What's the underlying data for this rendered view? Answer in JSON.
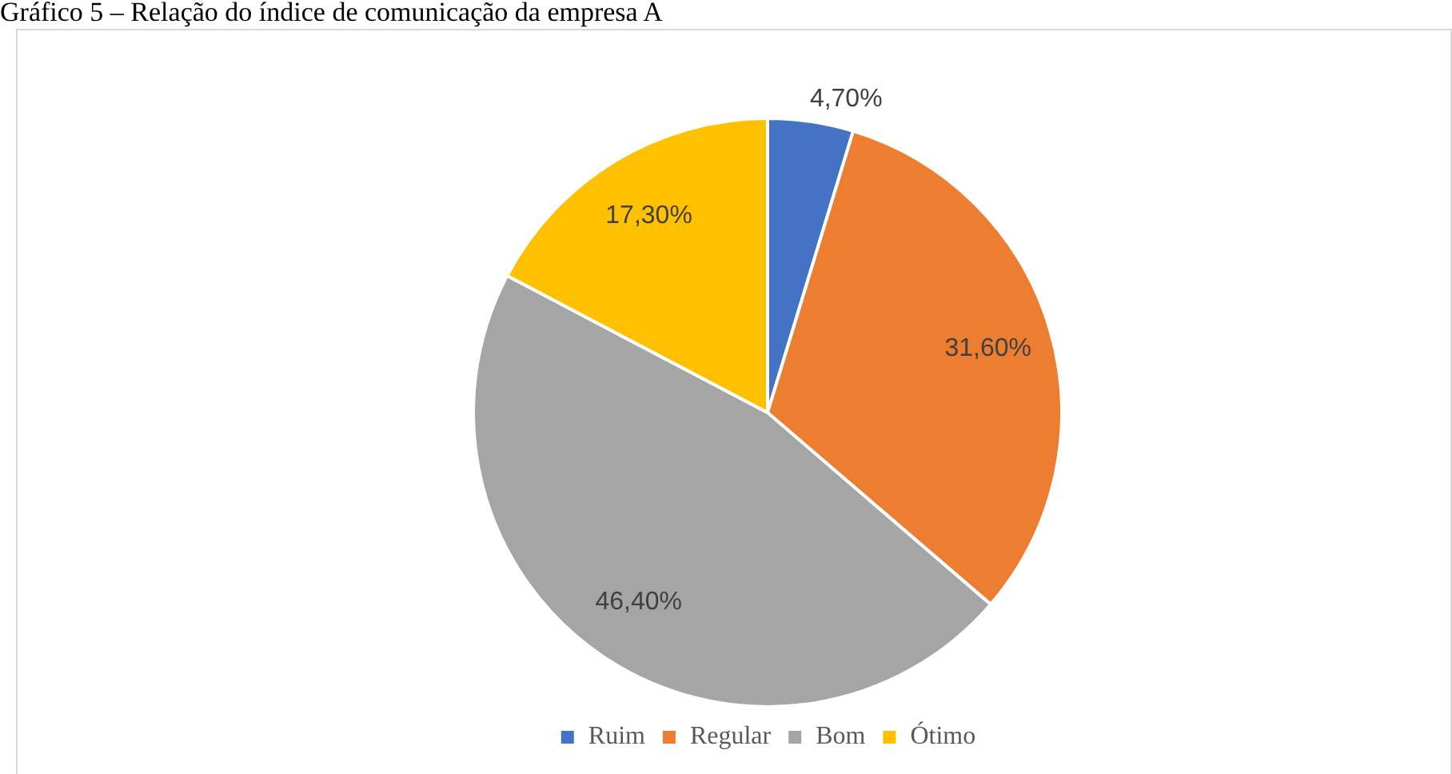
{
  "chart_data": {
    "type": "pie",
    "title": "Gráfico 5 – Relação do índice de comunicação da empresa A",
    "categories": [
      "Ruim",
      "Regular",
      "Bom",
      "Ótimo"
    ],
    "values": [
      4.7,
      31.6,
      46.4,
      17.3
    ],
    "colors": [
      "#4472c4",
      "#ed7d31",
      "#a5a5a5",
      "#ffc000"
    ],
    "value_labels": [
      "4,70%",
      "31,60%",
      "46,40%",
      "17,30%"
    ],
    "legend": "bottom"
  }
}
